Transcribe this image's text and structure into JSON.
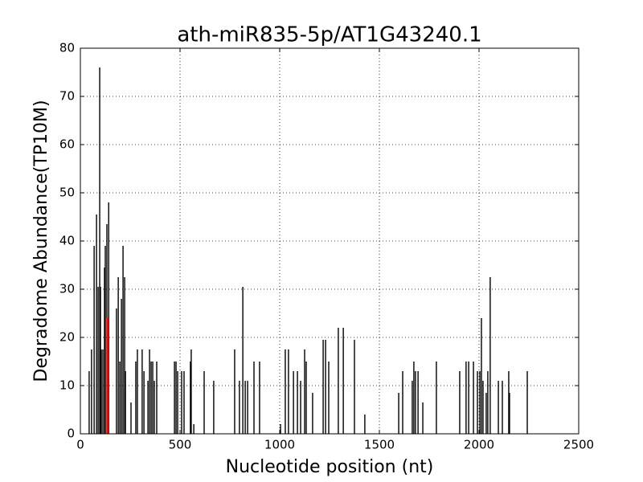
{
  "chart_data": {
    "type": "bar",
    "title": "ath-miR835-5p/AT1G43240.1",
    "x_label": "Nucleotide position (nt)",
    "y_label": "Degradome Abundance(TP10M)",
    "x": [
      44,
      56,
      69,
      81,
      89,
      97,
      101,
      105,
      113,
      121,
      125,
      133,
      142,
      181,
      190,
      198,
      206,
      214,
      222,
      226,
      254,
      278,
      286,
      310,
      319,
      339,
      347,
      355,
      363,
      371,
      383,
      472,
      480,
      488,
      508,
      520,
      552,
      556,
      569,
      621,
      669,
      774,
      798,
      815,
      827,
      839,
      871,
      899,
      1004,
      1028,
      1044,
      1069,
      1089,
      1105,
      1125,
      1133,
      1165,
      1218,
      1230,
      1246,
      1294,
      1319,
      1375,
      1427,
      1597,
      1617,
      1665,
      1673,
      1681,
      1694,
      1718,
      1786,
      1903,
      1935,
      1948,
      1972,
      1992,
      2004,
      2012,
      2020,
      2036,
      2044,
      2056,
      2097,
      2117,
      2149,
      2153,
      2242
    ],
    "values": [
      13,
      17.5,
      39,
      45.5,
      30.5,
      76,
      30.5,
      17.5,
      17.5,
      34.5,
      39,
      43.5,
      48,
      26,
      32.5,
      15,
      28,
      39,
      32.5,
      13,
      6.5,
      15,
      17.5,
      17.5,
      13,
      11,
      17.5,
      15,
      15,
      11,
      15,
      15,
      15,
      13,
      13,
      13,
      15,
      17.5,
      2,
      13,
      11,
      17.5,
      11,
      30.5,
      11,
      11,
      15,
      15,
      2,
      17.5,
      17.5,
      13,
      13,
      11,
      17.5,
      15,
      8.5,
      19.5,
      19.5,
      15,
      22,
      22,
      19.5,
      4,
      8.5,
      13,
      11,
      15,
      13,
      13,
      6.5,
      15,
      13,
      15,
      15,
      15,
      13,
      13,
      24,
      11,
      8.5,
      13,
      32.5,
      11,
      11,
      13,
      8.5,
      13
    ],
    "color": "#000000",
    "highlight": {
      "x": [
        137
      ],
      "values": [
        24
      ],
      "color": "#ff0000"
    },
    "xlim": [
      0,
      2500
    ],
    "xticks": [
      0,
      500,
      1000,
      1500,
      2000,
      2500
    ],
    "ylim": [
      0,
      80
    ],
    "yticks": [
      0,
      10,
      20,
      30,
      40,
      50,
      60,
      70,
      80
    ],
    "grid": true
  }
}
